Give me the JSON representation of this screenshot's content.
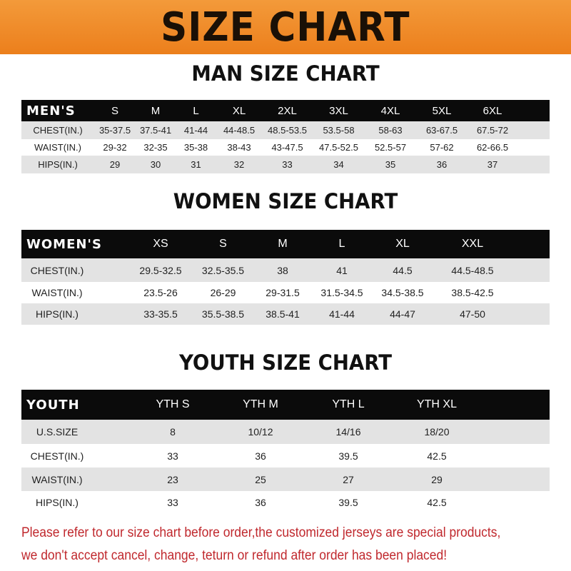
{
  "banner_title": "SIZE CHART",
  "men": {
    "title": "MAN SIZE CHART",
    "header_label": "MEN'S",
    "sizes": [
      "S",
      "M",
      "L",
      "XL",
      "2XL",
      "3XL",
      "4XL",
      "5XL",
      "6XL"
    ],
    "rows": [
      {
        "label": "CHEST(IN.)",
        "values": [
          "35-37.5",
          "37.5-41",
          "41-44",
          "44-48.5",
          "48.5-53.5",
          "53.5-58",
          "58-63",
          "63-67.5",
          "67.5-72"
        ]
      },
      {
        "label": "WAIST(IN.)",
        "values": [
          "29-32",
          "32-35",
          "35-38",
          "38-43",
          "43-47.5",
          "47.5-52.5",
          "52.5-57",
          "57-62",
          "62-66.5"
        ]
      },
      {
        "label": "HIPS(IN.)",
        "values": [
          "29",
          "30",
          "31",
          "32",
          "33",
          "34",
          "35",
          "36",
          "37"
        ]
      }
    ]
  },
  "women": {
    "title": "WOMEN SIZE CHART",
    "header_label": "WOMEN'S",
    "sizes": [
      "XS",
      "S",
      "M",
      "L",
      "XL",
      "XXL"
    ],
    "rows": [
      {
        "label": "CHEST(IN.)",
        "values": [
          "29.5-32.5",
          "32.5-35.5",
          "38",
          "41",
          "44.5",
          "44.5-48.5"
        ]
      },
      {
        "label": "WAIST(IN.)",
        "values": [
          "23.5-26",
          "26-29",
          "29-31.5",
          "31.5-34.5",
          "34.5-38.5",
          "38.5-42.5"
        ]
      },
      {
        "label": "HIPS(IN.)",
        "values": [
          "33-35.5",
          "35.5-38.5",
          "38.5-41",
          "41-44",
          "44-47",
          "47-50"
        ]
      }
    ]
  },
  "youth": {
    "title": "YOUTH SIZE CHART",
    "header_label": "YOUTH",
    "sizes": [
      "YTH S",
      "YTH M",
      "YTH L",
      "YTH XL"
    ],
    "rows": [
      {
        "label": "U.S.SIZE",
        "values": [
          "8",
          "10/12",
          "14/16",
          "18/20"
        ]
      },
      {
        "label": "CHEST(IN.)",
        "values": [
          "33",
          "36",
          "39.5",
          "42.5"
        ]
      },
      {
        "label": "WAIST(IN.)",
        "values": [
          "23",
          "25",
          "27",
          "29"
        ]
      },
      {
        "label": "HIPS(IN.)",
        "values": [
          "33",
          "36",
          "39.5",
          "42.5"
        ]
      }
    ]
  },
  "notice": {
    "line1": "Please refer to our size chart before order,the customized jerseys are special products,",
    "line2": "we don't accept cancel, change, teturn or refund after order has been placed!"
  },
  "colors": {
    "banner": "#ef8a25",
    "header_row": "#0b0b0b",
    "stripe": "#e3e3e3",
    "notice": "#c0282d"
  }
}
